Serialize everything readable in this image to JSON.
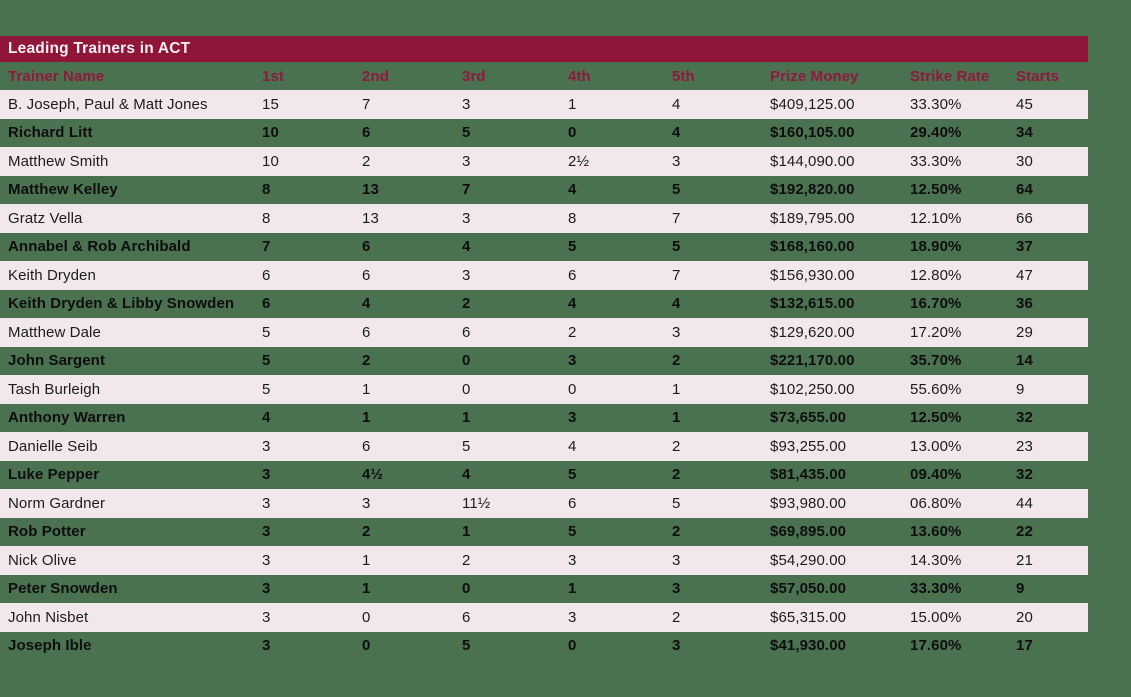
{
  "title_bar": {
    "title": "Leading Trainers in ACT"
  },
  "colors": {
    "background": "#4A7150",
    "bar": "#901639",
    "header_text": "#8E1A3D",
    "row_light": "#F2E8EB",
    "title_text": "#F7EFF2",
    "row_text": "#1C1C1C",
    "row_text_bold": "#0E0E0E"
  },
  "chart_data": {
    "type": "table",
    "title": "Leading Trainers in ACT",
    "columns": [
      "Trainer Name",
      "1st",
      "2nd",
      "3rd",
      "4th",
      "5th",
      "Prize Money",
      "Strike Rate",
      "Starts"
    ],
    "rows": [
      [
        "B. Joseph, Paul & Matt Jones",
        "15",
        "7",
        "3",
        "1",
        "4",
        "$409,125.00",
        "33.30%",
        "45"
      ],
      [
        "Richard Litt",
        "10",
        "6",
        "5",
        "0",
        "4",
        "$160,105.00",
        "29.40%",
        "34"
      ],
      [
        "Matthew Smith",
        "10",
        "2",
        "3",
        "2½",
        "3",
        "$144,090.00",
        "33.30%",
        "30"
      ],
      [
        "Matthew Kelley",
        "8",
        "13",
        "7",
        "4",
        "5",
        "$192,820.00",
        "12.50%",
        "64"
      ],
      [
        "Gratz Vella",
        "8",
        "13",
        "3",
        "8",
        "7",
        "$189,795.00",
        "12.10%",
        "66"
      ],
      [
        "Annabel & Rob Archibald",
        "7",
        "6",
        "4",
        "5",
        "5",
        "$168,160.00",
        "18.90%",
        "37"
      ],
      [
        "Keith Dryden",
        "6",
        "6",
        "3",
        "6",
        "7",
        "$156,930.00",
        "12.80%",
        "47"
      ],
      [
        "Keith Dryden & Libby Snowden",
        "6",
        "4",
        "2",
        "4",
        "4",
        "$132,615.00",
        "16.70%",
        "36"
      ],
      [
        "Matthew Dale",
        "5",
        "6",
        "6",
        "2",
        "3",
        "$129,620.00",
        "17.20%",
        "29"
      ],
      [
        "John Sargent",
        "5",
        "2",
        "0",
        "3",
        "2",
        "$221,170.00",
        "35.70%",
        "14"
      ],
      [
        "Tash Burleigh",
        "5",
        "1",
        "0",
        "0",
        "1",
        "$102,250.00",
        "55.60%",
        "9"
      ],
      [
        "Anthony Warren",
        "4",
        "1",
        "1",
        "3",
        "1",
        "$73,655.00",
        "12.50%",
        "32"
      ],
      [
        "Danielle Seib",
        "3",
        "6",
        "5",
        "4",
        "2",
        "$93,255.00",
        "13.00%",
        "23"
      ],
      [
        "Luke Pepper",
        "3",
        "4½",
        "4",
        "5",
        "2",
        "$81,435.00",
        "09.40%",
        "32"
      ],
      [
        "Norm Gardner",
        "3",
        "3",
        "11½",
        "6",
        "5",
        "$93,980.00",
        "06.80%",
        "44"
      ],
      [
        "Rob Potter",
        "3",
        "2",
        "1",
        "5",
        "2",
        "$69,895.00",
        "13.60%",
        "22"
      ],
      [
        "Nick Olive",
        "3",
        "1",
        "2",
        "3",
        "3",
        "$54,290.00",
        "14.30%",
        "21"
      ],
      [
        "Peter Snowden",
        "3",
        "1",
        "0",
        "1",
        "3",
        "$57,050.00",
        "33.30%",
        "9"
      ],
      [
        "John Nisbet",
        "3",
        "0",
        "6",
        "3",
        "2",
        "$65,315.00",
        "15.00%",
        "20"
      ],
      [
        "Joseph Ible",
        "3",
        "0",
        "5",
        "0",
        "3",
        "$41,930.00",
        "17.60%",
        "17"
      ]
    ],
    "layout": {
      "row_striping": "alternating light-pink / green-transparent",
      "bold_rows": "even rows (2nd, 4th, ...)"
    }
  }
}
